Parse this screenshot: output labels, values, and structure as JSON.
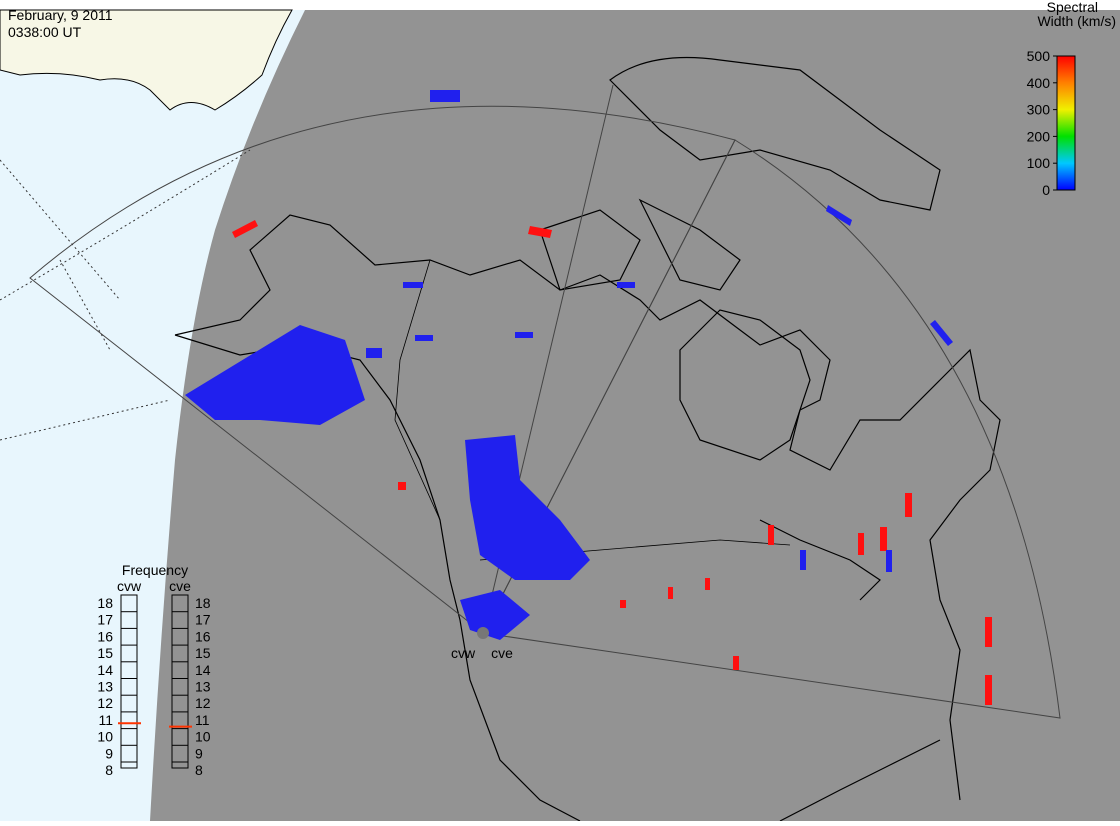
{
  "header": {
    "date": "February, 9 2011",
    "time": "0338:00 UT"
  },
  "colorbar": {
    "title": [
      "Spectral",
      "Width (km/s)"
    ],
    "range": [
      0,
      500
    ],
    "ticks": [
      0,
      100,
      200,
      300,
      400,
      500
    ]
  },
  "frequency": {
    "title": "Frequency",
    "scale": [
      18,
      17,
      16,
      15,
      14,
      13,
      12,
      11,
      10,
      9,
      8
    ],
    "radars": [
      {
        "name": "cvw",
        "value": 10.8
      },
      {
        "name": "cve",
        "value": 10.6
      }
    ]
  },
  "sites": [
    "cvw",
    "cve"
  ]
}
